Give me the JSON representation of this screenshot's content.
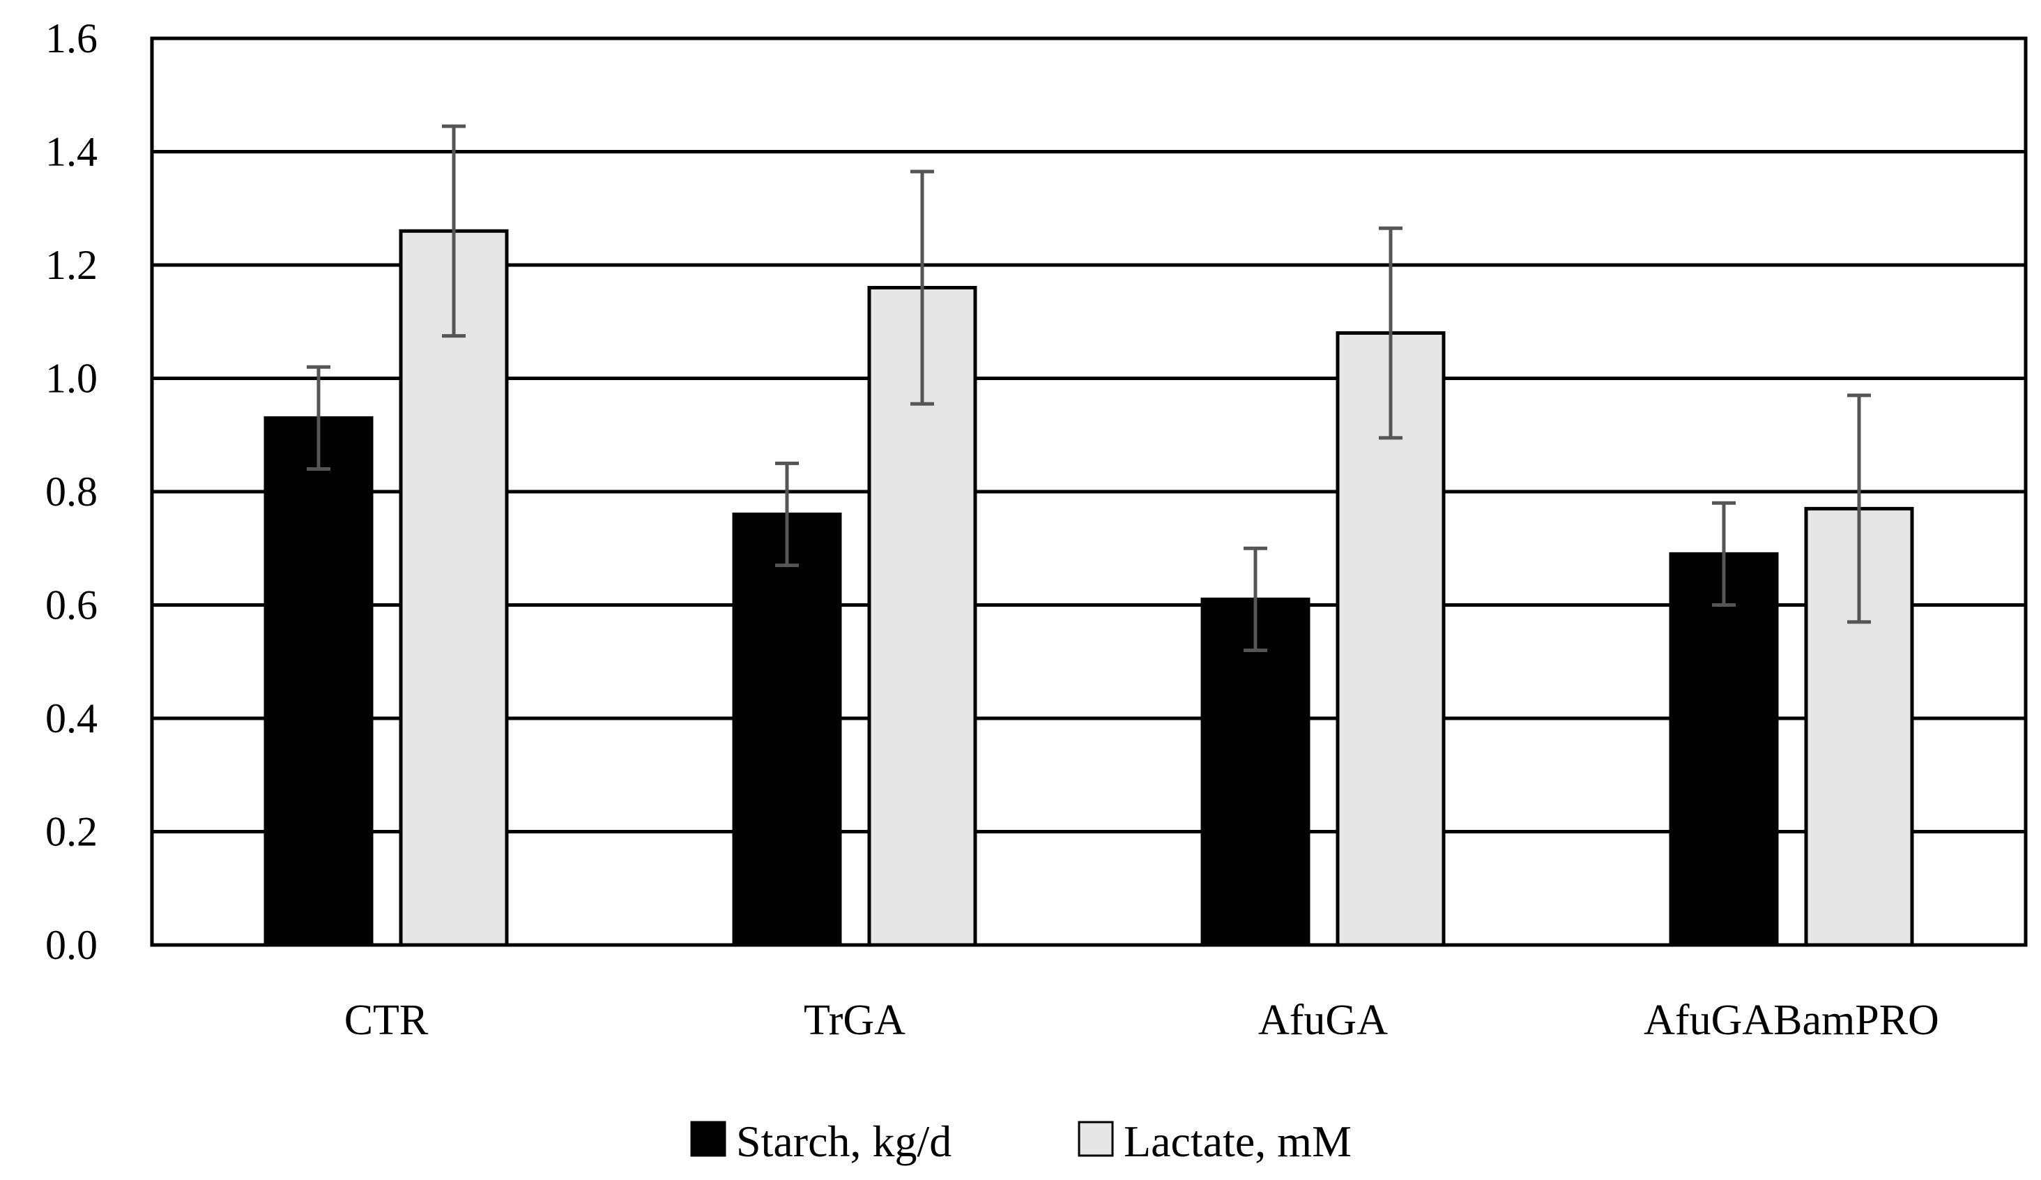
{
  "chart_data": {
    "type": "bar",
    "title": "",
    "xlabel": "",
    "ylabel": "",
    "categories": [
      "CTR",
      "TrGA",
      "AfuGA",
      "AfuGABamPRO"
    ],
    "series": [
      {
        "name": "Starch, kg/d",
        "color": "#000000",
        "values": [
          0.93,
          0.76,
          0.61,
          0.69
        ],
        "errors": [
          0.09,
          0.09,
          0.09,
          0.09
        ]
      },
      {
        "name": "Lactate, mM",
        "color": "#e6e6e6",
        "values": [
          1.26,
          1.16,
          1.08,
          0.77
        ],
        "errors": [
          0.185,
          0.205,
          0.185,
          0.2
        ]
      }
    ],
    "ylim": [
      0,
      1.6
    ],
    "yticks": [
      0,
      0.2,
      0.4,
      0.6,
      0.8,
      1.0,
      1.2,
      1.4,
      1.6
    ],
    "ytick_labels": [
      "0.0",
      "0.2",
      "0.4",
      "0.6",
      "0.8",
      "1.0",
      "1.2",
      "1.4",
      "1.6"
    ],
    "grid": true,
    "legend_position": "bottom-center"
  }
}
